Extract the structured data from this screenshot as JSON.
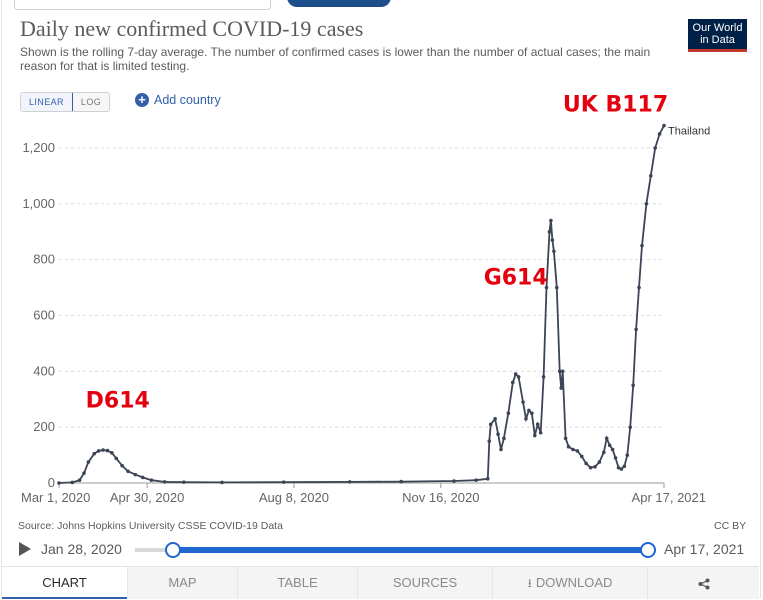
{
  "chart_title": "Daily new confirmed COVID-19 cases",
  "chart_subtitle": "Shown is the rolling 7-day average. The number of confirmed cases is lower than the number of actual cases; the main reason for that is limited testing.",
  "logo": {
    "line1": "Our World",
    "line2": "in Data"
  },
  "scale_toggle": {
    "linear": "LINEAR",
    "log": "LOG",
    "selected": "LINEAR"
  },
  "add_country_label": "Add country",
  "source_text": "Source: Johns Hopkins University CSSE COVID-19 Data",
  "license_text": "CC BY",
  "timeline": {
    "start_label": "Jan 28, 2020",
    "end_label": "Apr 17, 2021"
  },
  "tabs": {
    "chart": "CHART",
    "map": "MAP",
    "table": "TABLE",
    "sources": "SOURCES",
    "download": "DOWNLOAD"
  },
  "icons": {
    "play": "play-icon",
    "plus": "plus-circle-icon",
    "download": "download-icon",
    "share": "share-icon"
  },
  "colors": {
    "line": "#3b4556",
    "annotation": "#e4000f",
    "accent": "#3360a9",
    "slider": "#1f66cf"
  },
  "chart_data": {
    "type": "line",
    "title": "Daily new confirmed COVID-19 cases",
    "xlabel": "",
    "ylabel": "",
    "x_range": [
      "2020-03-01",
      "2021-04-17"
    ],
    "ylim": [
      0,
      1300
    ],
    "y_ticks": [
      0,
      200,
      400,
      600,
      800,
      1000,
      1200
    ],
    "x_ticks": [
      {
        "date": "2020-03-01",
        "label": "Mar 1, 2020"
      },
      {
        "date": "2020-04-30",
        "label": "Apr 30, 2020"
      },
      {
        "date": "2020-08-08",
        "label": "Aug 8, 2020"
      },
      {
        "date": "2020-11-16",
        "label": "Nov 16, 2020"
      },
      {
        "date": "2021-04-17",
        "label": "Apr 17, 2021"
      }
    ],
    "grid": true,
    "series": [
      {
        "name": "Thailand",
        "points": [
          [
            "2020-03-01",
            0
          ],
          [
            "2020-03-10",
            2
          ],
          [
            "2020-03-15",
            10
          ],
          [
            "2020-03-18",
            35
          ],
          [
            "2020-03-21",
            75
          ],
          [
            "2020-03-25",
            105
          ],
          [
            "2020-03-28",
            115
          ],
          [
            "2020-03-31",
            118
          ],
          [
            "2020-04-03",
            116
          ],
          [
            "2020-04-06",
            108
          ],
          [
            "2020-04-09",
            88
          ],
          [
            "2020-04-13",
            62
          ],
          [
            "2020-04-17",
            42
          ],
          [
            "2020-04-22",
            30
          ],
          [
            "2020-04-27",
            20
          ],
          [
            "2020-05-03",
            10
          ],
          [
            "2020-05-12",
            4
          ],
          [
            "2020-05-25",
            3
          ],
          [
            "2020-06-20",
            2
          ],
          [
            "2020-08-01",
            3
          ],
          [
            "2020-09-15",
            4
          ],
          [
            "2020-10-20",
            5
          ],
          [
            "2020-11-25",
            7
          ],
          [
            "2020-12-10",
            10
          ],
          [
            "2020-12-18",
            15
          ],
          [
            "2020-12-19",
            150
          ],
          [
            "2020-12-20",
            210
          ],
          [
            "2020-12-23",
            230
          ],
          [
            "2020-12-25",
            175
          ],
          [
            "2020-12-27",
            120
          ],
          [
            "2020-12-29",
            160
          ],
          [
            "2021-01-01",
            250
          ],
          [
            "2021-01-04",
            360
          ],
          [
            "2021-01-06",
            390
          ],
          [
            "2021-01-08",
            380
          ],
          [
            "2021-01-11",
            290
          ],
          [
            "2021-01-13",
            230
          ],
          [
            "2021-01-15",
            260
          ],
          [
            "2021-01-17",
            250
          ],
          [
            "2021-01-19",
            170
          ],
          [
            "2021-01-21",
            210
          ],
          [
            "2021-01-23",
            180
          ],
          [
            "2021-01-25",
            380
          ],
          [
            "2021-01-27",
            700
          ],
          [
            "2021-01-29",
            900
          ],
          [
            "2021-01-30",
            940
          ],
          [
            "2021-01-31",
            870
          ],
          [
            "2021-02-01",
            830
          ],
          [
            "2021-02-03",
            700
          ],
          [
            "2021-02-05",
            400
          ],
          [
            "2021-02-06",
            340
          ],
          [
            "2021-02-07",
            400
          ],
          [
            "2021-02-09",
            160
          ],
          [
            "2021-02-11",
            130
          ],
          [
            "2021-02-14",
            120
          ],
          [
            "2021-02-17",
            115
          ],
          [
            "2021-02-20",
            95
          ],
          [
            "2021-02-23",
            70
          ],
          [
            "2021-02-26",
            55
          ],
          [
            "2021-03-01",
            58
          ],
          [
            "2021-03-04",
            75
          ],
          [
            "2021-03-07",
            110
          ],
          [
            "2021-03-09",
            160
          ],
          [
            "2021-03-11",
            135
          ],
          [
            "2021-03-13",
            120
          ],
          [
            "2021-03-15",
            90
          ],
          [
            "2021-03-17",
            55
          ],
          [
            "2021-03-19",
            50
          ],
          [
            "2021-03-21",
            60
          ],
          [
            "2021-03-23",
            100
          ],
          [
            "2021-03-25",
            200
          ],
          [
            "2021-03-27",
            350
          ],
          [
            "2021-03-29",
            550
          ],
          [
            "2021-03-31",
            700
          ],
          [
            "2021-04-02",
            850
          ],
          [
            "2021-04-05",
            1000
          ],
          [
            "2021-04-08",
            1100
          ],
          [
            "2021-04-11",
            1200
          ],
          [
            "2021-04-14",
            1250
          ],
          [
            "2021-04-17",
            1280
          ]
        ]
      }
    ],
    "annotations": [
      {
        "text": "D614",
        "date": "2020-04-10",
        "value": 270
      },
      {
        "text": "G614",
        "date": "2021-01-06",
        "value": 710
      },
      {
        "text": "UK B117",
        "date": "2021-03-15",
        "value": 1330
      }
    ]
  }
}
